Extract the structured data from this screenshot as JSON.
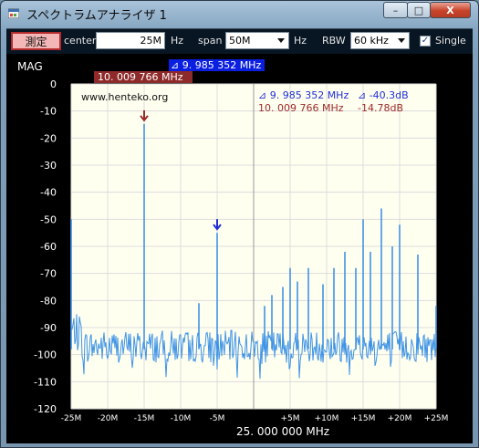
{
  "window": {
    "title": "スペクトラムアナライザ 1",
    "icon": "app-window-icon",
    "controls": {
      "minimize": "–",
      "maximize": "□",
      "close": "X"
    }
  },
  "toolbar": {
    "measure_label": "測定",
    "center_label": "center",
    "center_value": "25M",
    "center_unit": "Hz",
    "span_label": "span",
    "span_value": "50M",
    "span_unit": "Hz",
    "rbw_label": "RBW",
    "rbw_value": "60 kHz",
    "single_label": "Single",
    "single_checked": true
  },
  "display": {
    "mag_label": "MAG",
    "url_text": "www.henteko.org",
    "marker_blue_freq_box": "⊿ 9. 985 352 MHz",
    "marker_red_freq_box": "10. 009 766 MHz",
    "readout_blue_freq": "⊿ 9. 985 352 MHz",
    "readout_blue_db": "⊿ -40.3dB",
    "readout_red_freq": "10. 009 766 MHz",
    "readout_red_db": "-14.78dB",
    "center_freq_label": "25. 000 000 MHz",
    "colors": {
      "background": "#fffff0",
      "trace": "#3f93e6",
      "marker_blue": "#1f2fd6",
      "marker_red": "#9e2a2a",
      "grid": "#d8d8d8"
    }
  },
  "chart_data": {
    "type": "line",
    "xlabel": "25. 000 000 MHz",
    "ylabel": "MAG",
    "xlim": [
      -25,
      25
    ],
    "ylim": [
      -120,
      0
    ],
    "grid": true,
    "y_ticks": [
      "0",
      "-10",
      "-20",
      "-30",
      "-40",
      "-50",
      "-60",
      "-70",
      "-80",
      "-90",
      "-100",
      "-110",
      "-120"
    ],
    "x_ticks": [
      "-25M",
      "-20M",
      "-15M",
      "-10M",
      "-5M",
      "",
      "+5M",
      "+10M",
      "+15M",
      "+20M",
      "+25M"
    ],
    "noise_floor_db": -97,
    "peaks": [
      {
        "x": -25.0,
        "y": -50
      },
      {
        "x": -15.0,
        "y": -14.8
      },
      {
        "x": -7.5,
        "y": -81
      },
      {
        "x": -5.0,
        "y": -55
      },
      {
        "x": 1.5,
        "y": -82
      },
      {
        "x": 2.5,
        "y": -78
      },
      {
        "x": 4.0,
        "y": -75
      },
      {
        "x": 5.0,
        "y": -68
      },
      {
        "x": 6.0,
        "y": -73
      },
      {
        "x": 7.5,
        "y": -68
      },
      {
        "x": 9.5,
        "y": -74
      },
      {
        "x": 11.0,
        "y": -68
      },
      {
        "x": 12.5,
        "y": -62
      },
      {
        "x": 14.0,
        "y": -68
      },
      {
        "x": 15.0,
        "y": -50
      },
      {
        "x": 16.0,
        "y": -62
      },
      {
        "x": 17.5,
        "y": -46
      },
      {
        "x": 19.0,
        "y": -60
      },
      {
        "x": 20.0,
        "y": -52
      },
      {
        "x": 22.5,
        "y": -63
      },
      {
        "x": 25.0,
        "y": -82
      }
    ],
    "markers": [
      {
        "x": -15.0,
        "y": -14.8,
        "color": "#9e2a2a"
      },
      {
        "x": -5.0,
        "y": -55,
        "color": "#1f2fd6"
      }
    ]
  }
}
